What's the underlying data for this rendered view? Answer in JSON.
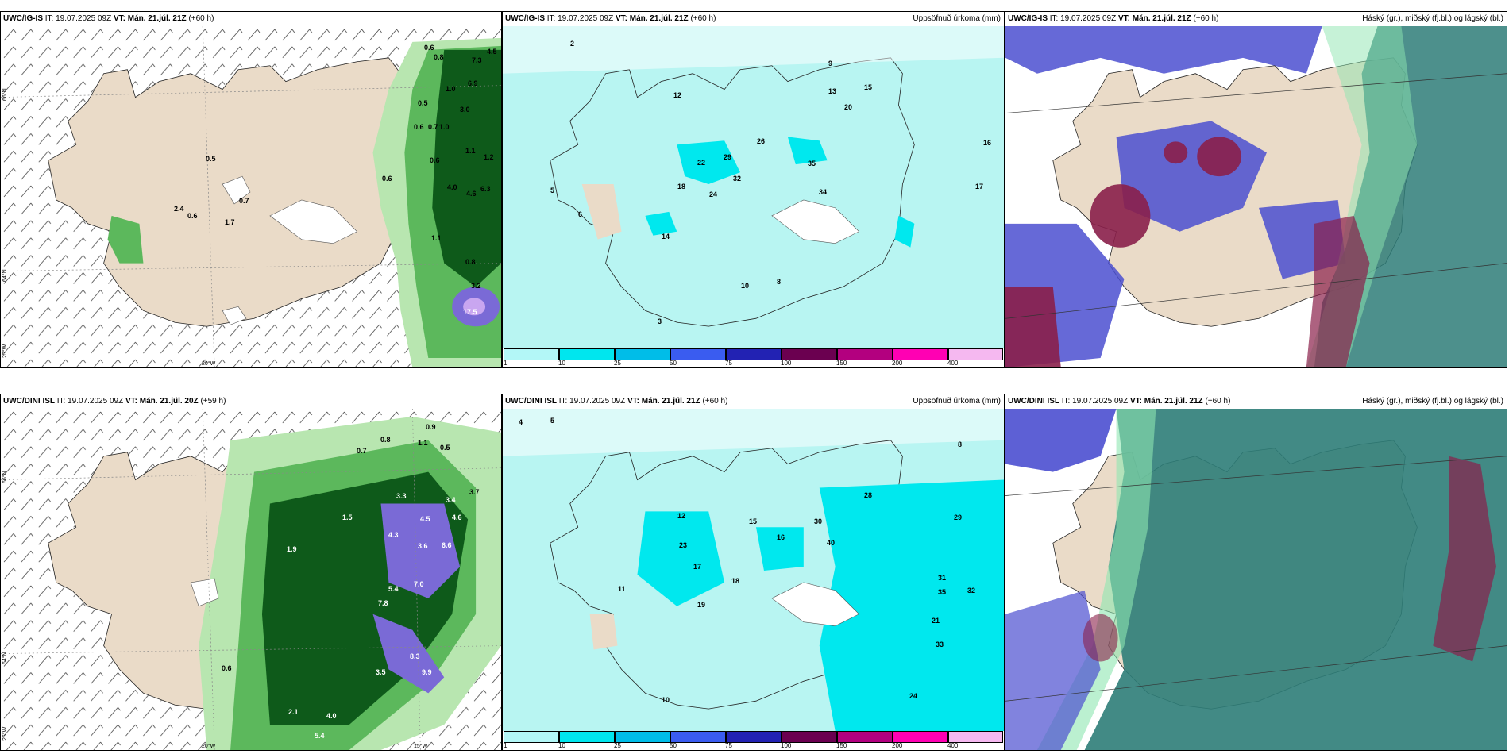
{
  "panels": {
    "tl": {
      "model": "UWC/IG-IS",
      "it": "IT: 19.07.2025 09Z",
      "vt": "VT: Mán. 21.júl. 21Z",
      "lead": "(+60 h)",
      "right": ""
    },
    "tm": {
      "model": "UWC/IG-IS",
      "it": "IT: 19.07.2025 09Z",
      "vt": "VT: Mán. 21.júl. 21Z",
      "lead": "(+60 h)",
      "right": "Uppsöfnuð úrkoma (mm)"
    },
    "tr": {
      "model": "UWC/IG-IS",
      "it": "IT: 19.07.2025 09Z",
      "vt": "VT: Mán. 21.júl. 21Z",
      "lead": "(+60 h)",
      "right": "Háský (gr.), miðský (fj.bl.) og lágský (bl.)"
    },
    "bl": {
      "model": "UWC/DINI ISL",
      "it": "IT: 19.07.2025 09Z",
      "vt": "VT: Mán. 21.júl. 20Z",
      "lead": "(+59 h)",
      "right": ""
    },
    "bm": {
      "model": "UWC/DINI ISL",
      "it": "IT: 19.07.2025 09Z",
      "vt": "VT: Mán. 21.júl. 21Z",
      "lead": "(+60 h)",
      "right": "Uppsöfnuð úrkoma (mm)"
    },
    "br": {
      "model": "UWC/DINI ISL",
      "it": "IT: 19.07.2025 09Z",
      "vt": "VT: Mán. 21.júl. 21Z",
      "lead": "(+60 h)",
      "right": "Háský (gr.), miðský (fj.bl.) og lágský (bl.)"
    }
  },
  "grid_labels": {
    "lat_66": "66°N",
    "lat_64": "64°N",
    "lon_25": "25°W",
    "lon_20": "20°W",
    "lon_15": "15°W"
  },
  "colorbar": {
    "labels": [
      "1",
      "10",
      "25",
      "50",
      "75",
      "100",
      "150",
      "200",
      "400"
    ],
    "colors": [
      "#b3f7f7",
      "#00e6ee",
      "#00bde8",
      "#3a5cf0",
      "#2222b3",
      "#6b0050",
      "#b3007f",
      "#ff00b3",
      "#f5b8f0"
    ]
  },
  "values": {
    "tl": [
      "0.6",
      "0.8",
      "7.3",
      "4.5",
      "6.9",
      "1.0",
      "0.5",
      "3.0",
      "0.6",
      "0.7",
      "1.0",
      "1.1",
      "1.2",
      "0.6",
      "4.0",
      "4.6",
      "6.3",
      "0.6",
      "1.7",
      "1.1",
      "0.8",
      "3.2",
      "17.5",
      "0.5",
      "0.7",
      "2.4",
      "0.6"
    ],
    "tm": [
      "2",
      "12",
      "9",
      "13",
      "15",
      "20",
      "22",
      "29",
      "32",
      "24",
      "18",
      "14",
      "26",
      "35",
      "34",
      "10",
      "8",
      "6",
      "5",
      "3",
      "16",
      "17"
    ],
    "bl": [
      "0.9",
      "1.1",
      "0.5",
      "0.8",
      "0.7",
      "3.3",
      "4.3",
      "4.5",
      "3.4",
      "4.6",
      "3.7",
      "5.4",
      "7.8",
      "7.0",
      "8.3",
      "9.9",
      "3.5",
      "4.0",
      "5.4",
      "2.1",
      "1.5",
      "0.6",
      "1.9",
      "3.6",
      "6.6"
    ],
    "bm": [
      "4",
      "5",
      "8",
      "12",
      "15",
      "16",
      "18",
      "23",
      "28",
      "31",
      "32",
      "33",
      "35",
      "21",
      "24",
      "29",
      "30",
      "40",
      "17",
      "19",
      "11",
      "10"
    ]
  },
  "colors": {
    "land": "#eadbc8",
    "sea": "#ffffff",
    "precip_light": "#b8f5f2",
    "precip_mid": "#00e8ee",
    "green1": "#b8e6b0",
    "green2": "#5cb85c",
    "green3": "#0e5a1a",
    "purple": "#7a6ad6",
    "cloud_blue": "#4b4fd0",
    "cloud_dark": "#8a1f4a",
    "cloud_teal": "#2e7d78"
  }
}
